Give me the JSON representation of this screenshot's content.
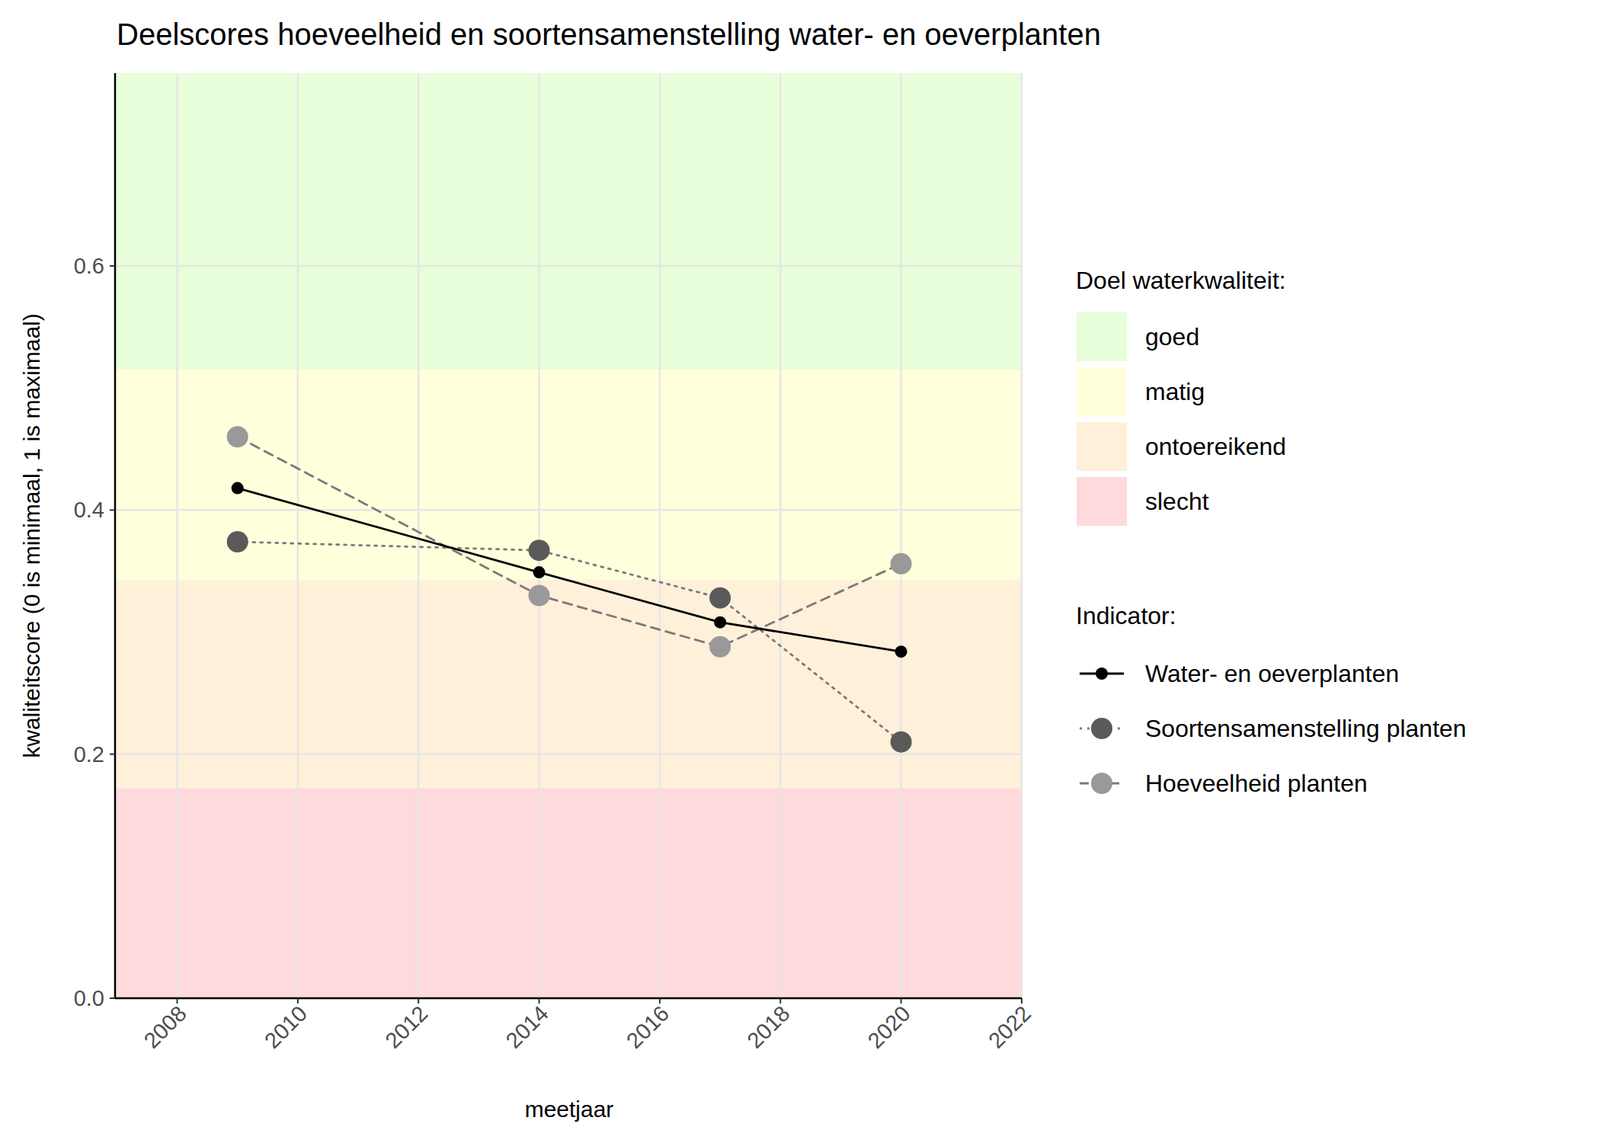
{
  "chart_data": {
    "type": "line",
    "title": "Deelscores hoeveelheid en soortensamenstelling water- en oeverplanten",
    "x_label": "meetjaar",
    "y_label": "kwaliteitscore (0 is minimaal, 1 is maximaal)",
    "x": [
      2009,
      2014,
      2017,
      2020
    ],
    "xlim": [
      2006.97,
      2022
    ],
    "xticks": [
      2008,
      2010,
      2012,
      2014,
      2016,
      2018,
      2020,
      2022
    ],
    "ylim": [
      0,
      0.758
    ],
    "yticks": [
      {
        "value": 0,
        "label": "0.0"
      },
      0.2,
      0.4,
      0.6
    ],
    "grid": true,
    "legend": "right",
    "band_legend_title": "Doel waterkwaliteit:",
    "bands": [
      {
        "name": "goed",
        "color": "#e8fdd9",
        "from": 0.515,
        "to": 0.758
      },
      {
        "name": "matig",
        "color": "#ffffdc",
        "from": 0.343,
        "to": 0.515
      },
      {
        "name": "ontoereikend",
        "color": "#fff0da",
        "from": 0.172,
        "to": 0.343
      },
      {
        "name": "slecht",
        "color": "#ffd9dc",
        "from": 0,
        "to": 0.172
      }
    ],
    "legend_title": "Indicator:",
    "series": [
      {
        "name": "Water- en oeverplanten",
        "color": "#000000",
        "marker": "point",
        "line_style": "solid",
        "values": [
          0.418,
          0.349,
          0.308,
          0.284
        ]
      },
      {
        "name": "Soortensamenstelling planten",
        "color": "#5a5a5a",
        "marker": "circle",
        "line_style": "dotted",
        "values": [
          0.374,
          0.367,
          0.328,
          0.21
        ]
      },
      {
        "name": "Hoeveelheid planten",
        "color": "#999999",
        "marker": "circle",
        "line_style": "dashed",
        "values": [
          0.46,
          0.33,
          0.288,
          0.356
        ]
      }
    ]
  }
}
